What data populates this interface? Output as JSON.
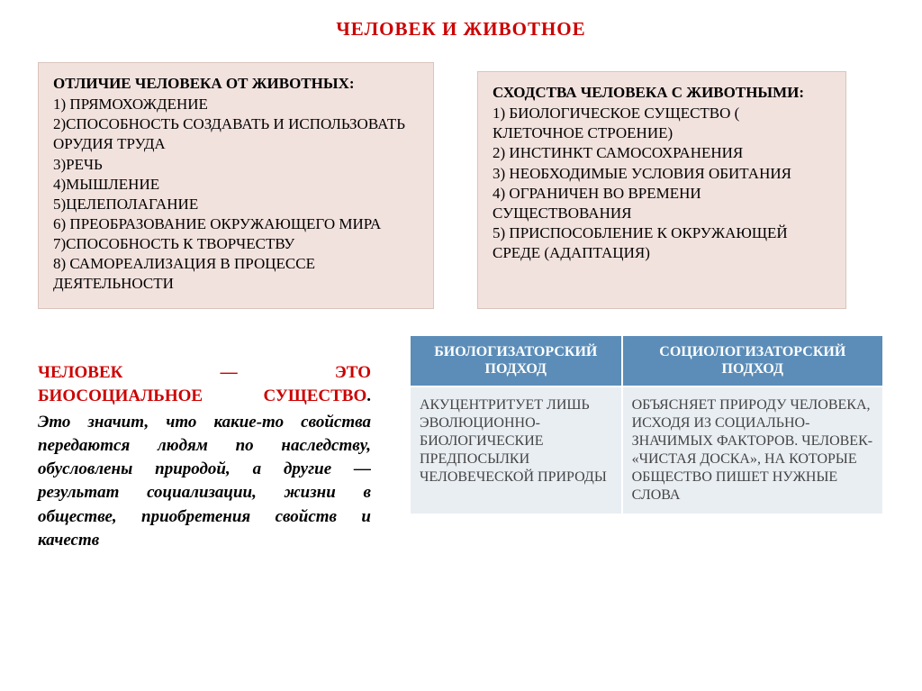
{
  "title": "ЧЕЛОВЕК И ЖИВОТНОЕ",
  "differences": {
    "heading": "ОТЛИЧИЕ ЧЕЛОВЕКА ОТ ЖИВОТНЫХ:",
    "body": "1) ПРЯМОХОЖДЕНИЕ\n2)СПОСОБНОСТЬ СОЗДАВАТЬ И ИСПОЛЬЗОВАТЬ ОРУДИЯ ТРУДА\n3)РЕЧЬ\n4)МЫШЛЕНИЕ\n5)ЦЕЛЕПОЛАГАНИЕ\n6) ПРЕОБРАЗОВАНИЕ ОКРУЖАЮЩЕГО МИРА\n7)СПОСОБНОСТЬ К ТВОРЧЕСТВУ\n8) САМОРЕАЛИЗАЦИЯ В ПРОЦЕССЕ ДЕЯТЕЛЬНОСТИ"
  },
  "similarities": {
    "heading": "СХОДСТВА ЧЕЛОВЕКА С ЖИВОТНЫМИ:",
    "body": "1) БИОЛОГИЧЕСКОЕ СУЩЕСТВО ( КЛЕТОЧНОЕ СТРОЕНИЕ)\n2) ИНСТИНКТ САМОСОХРАНЕНИЯ\n3) НЕОБХОДИМЫЕ УСЛОВИЯ ОБИТАНИЯ\n4) ОГРАНИЧЕН ВО ВРЕМЕНИ СУЩЕСТВОВАНИЯ\n5) ПРИСПОСОБЛЕНИЕ К ОКРУЖАЮЩЕЙ СРЕДЕ (АДАПТАЦИЯ)"
  },
  "definition": {
    "line1_w1": "ЧЕЛОВЕК",
    "line1_w2": "—",
    "line1_w3": "ЭТО",
    "line2_w1": "БИОСОЦИАЛЬНОЕ",
    "line2_w2": "СУЩЕСТВО",
    "period": ".",
    "rest": "Это значит, что какие-то свойства передаются людям по наследству, обусловлены природой, а другие — результат социализации, жизни в обществе, приобретения свойств и качеств"
  },
  "table": {
    "headers": [
      "БИОЛОГИЗАТОРСКИЙ ПОДХОД",
      "СОЦИОЛОГИЗАТОРСКИЙ ПОДХОД"
    ],
    "cells": [
      "АКУЦЕНТРИТУЕТ ЛИШЬ ЭВОЛЮЦИОННО-БИОЛОГИЧЕСКИЕ ПРЕДПОСЫЛКИ ЧЕЛОВЕЧЕСКОЙ ПРИРОДЫ",
      "ОБЪЯСНЯЕТ ПРИРОДУ ЧЕЛОВЕКА, ИСХОДЯ ИЗ СОЦИАЛЬНО-ЗНАЧИМЫХ ФАКТОРОВ. ЧЕЛОВЕК- «ЧИСТАЯ ДОСКА», НА КОТОРЫЕ ОБЩЕСТВО ПИШЕТ НУЖНЫЕ СЛОВА"
    ]
  },
  "colors": {
    "title": "#cc0000",
    "box_bg": "#f2e2de",
    "box_border": "#d9c4bd",
    "th_bg": "#5b8db8",
    "td_bg": "#e9eef3"
  }
}
